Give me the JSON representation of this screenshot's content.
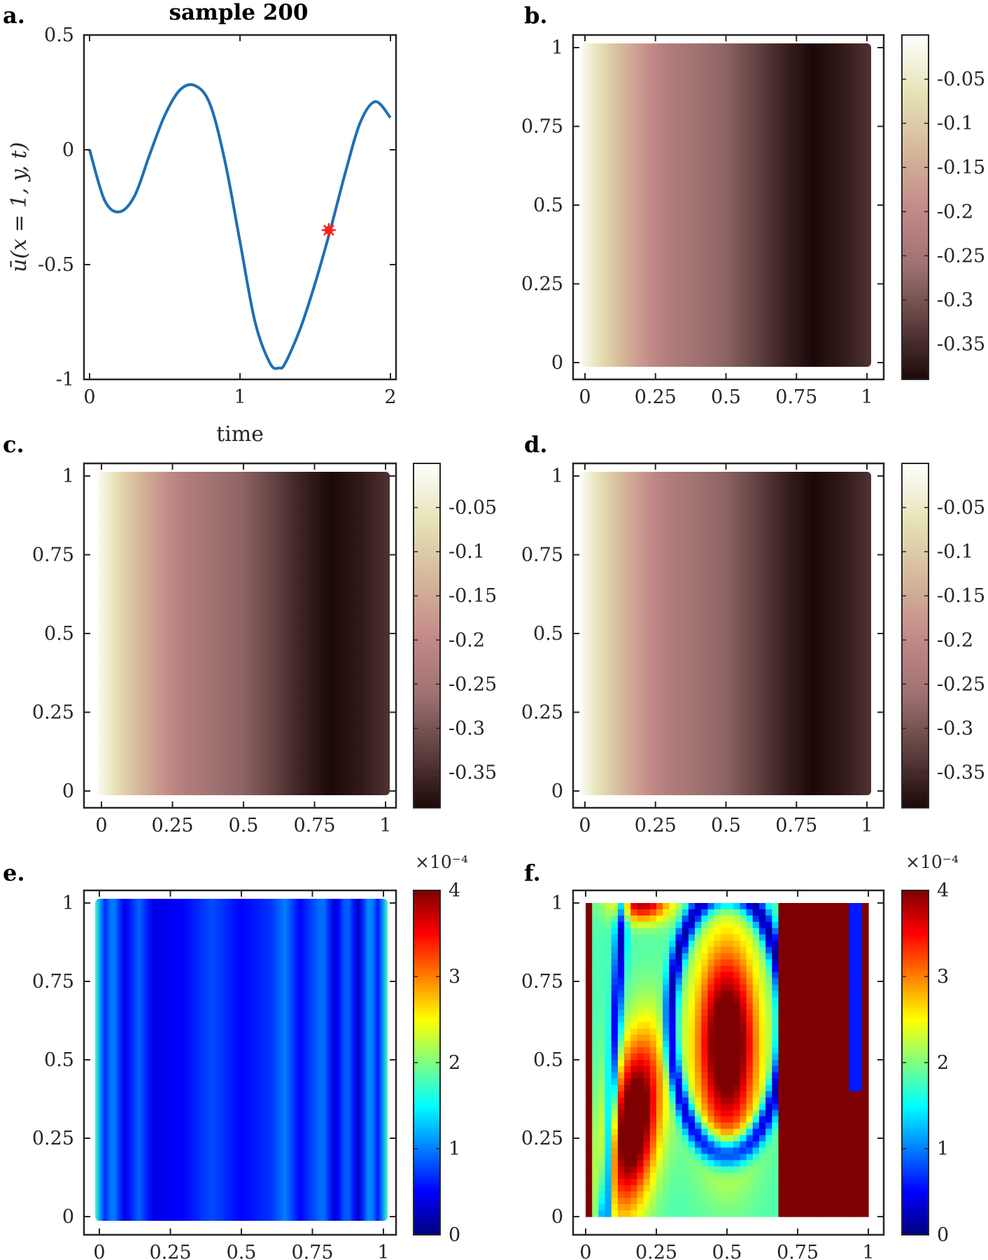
{
  "colors": {
    "line": "#1f6fb4",
    "marker": "#ff2020",
    "axis": "#262626",
    "pink_cmap": [
      "#1c0808",
      "#604040",
      "#a07272",
      "#c48a88",
      "#d5b89a",
      "#e6e3b6",
      "#ffffff"
    ],
    "jet_cmap": [
      "#00007f",
      "#0000ff",
      "#007fff",
      "#00ffff",
      "#7fff7f",
      "#ffff00",
      "#ff7f00",
      "#ff0000",
      "#7f0000"
    ]
  },
  "chart_data": [
    {
      "id": "a",
      "panel_label": "a.",
      "type": "line",
      "title": "sample 200",
      "xlabel": "time",
      "ylabel": "ū(x = 1, y, t)",
      "xlim": [
        0,
        2
      ],
      "ylim": [
        -1,
        0.5
      ],
      "xticks": [
        "0",
        "1",
        "2"
      ],
      "yticks": [
        "-1",
        "-0.5",
        "0",
        "0.5"
      ],
      "ytick_values": [
        -1,
        -0.5,
        0,
        0.5
      ],
      "series": [
        {
          "x": [
            0,
            0.1,
            0.2,
            0.3,
            0.4,
            0.5,
            0.6,
            0.7,
            0.8,
            0.9,
            1.0,
            1.1,
            1.2,
            1.26,
            1.3,
            1.4,
            1.5,
            1.6,
            1.7,
            1.8,
            1.9,
            2.0
          ],
          "y": [
            0,
            -0.22,
            -0.27,
            -0.2,
            -0.02,
            0.15,
            0.26,
            0.28,
            0.2,
            -0.05,
            -0.4,
            -0.75,
            -0.93,
            -0.95,
            -0.93,
            -0.78,
            -0.58,
            -0.35,
            -0.1,
            0.12,
            0.21,
            0.14
          ]
        }
      ],
      "annotations": [
        {
          "type": "marker",
          "x": 1.59,
          "y": -0.35
        }
      ]
    },
    {
      "id": "b",
      "panel_label": "b.",
      "type": "heatmap",
      "colormap": "pink",
      "xlim": [
        0,
        1
      ],
      "ylim": [
        0,
        1
      ],
      "xticks": [
        "0",
        "0.25",
        "0.5",
        "0.75",
        "1"
      ],
      "yticks": [
        "0",
        "0.25",
        "0.5",
        "0.75",
        "1"
      ],
      "clim": [
        -0.39,
        0
      ],
      "colorbar_ticks": [
        "-0.35",
        "-0.3",
        "-0.25",
        "-0.2",
        "-0.15",
        "-0.1",
        "-0.05"
      ],
      "colorbar_tick_values": [
        -0.35,
        -0.3,
        -0.25,
        -0.2,
        -0.15,
        -0.1,
        -0.05
      ],
      "profile_x": [
        0,
        0.1,
        0.2,
        0.3,
        0.4,
        0.5,
        0.6,
        0.7,
        0.8,
        0.9,
        1.0
      ],
      "profile_value": [
        -0.01,
        -0.1,
        -0.17,
        -0.23,
        -0.26,
        -0.28,
        -0.32,
        -0.36,
        -0.39,
        -0.37,
        -0.34
      ]
    },
    {
      "id": "c",
      "panel_label": "c.",
      "type": "heatmap",
      "colormap": "pink",
      "xlim": [
        0,
        1
      ],
      "ylim": [
        0,
        1
      ],
      "xticks": [
        "0",
        "0.25",
        "0.5",
        "0.75",
        "1"
      ],
      "yticks": [
        "0",
        "0.25",
        "0.5",
        "0.75",
        "1"
      ],
      "clim": [
        -0.39,
        0
      ],
      "colorbar_ticks": [
        "-0.35",
        "-0.3",
        "-0.25",
        "-0.2",
        "-0.15",
        "-0.1",
        "-0.05"
      ],
      "colorbar_tick_values": [
        -0.35,
        -0.3,
        -0.25,
        -0.2,
        -0.15,
        -0.1,
        -0.05
      ],
      "profile_x": [
        0,
        0.1,
        0.2,
        0.3,
        0.4,
        0.5,
        0.6,
        0.7,
        0.8,
        0.9,
        1.0
      ],
      "profile_value": [
        -0.01,
        -0.1,
        -0.17,
        -0.23,
        -0.26,
        -0.28,
        -0.32,
        -0.36,
        -0.39,
        -0.37,
        -0.34
      ]
    },
    {
      "id": "d",
      "panel_label": "d.",
      "type": "heatmap",
      "colormap": "pink",
      "xlim": [
        0,
        1
      ],
      "ylim": [
        0,
        1
      ],
      "xticks": [
        "0",
        "0.25",
        "0.5",
        "0.75",
        "1"
      ],
      "yticks": [
        "0",
        "0.25",
        "0.5",
        "0.75",
        "1"
      ],
      "clim": [
        -0.39,
        0
      ],
      "colorbar_ticks": [
        "-0.35",
        "-0.3",
        "-0.25",
        "-0.2",
        "-0.15",
        "-0.1",
        "-0.05"
      ],
      "colorbar_tick_values": [
        -0.35,
        -0.3,
        -0.25,
        -0.2,
        -0.15,
        -0.1,
        -0.05
      ],
      "profile_x": [
        0,
        0.1,
        0.2,
        0.3,
        0.4,
        0.5,
        0.6,
        0.7,
        0.8,
        0.9,
        1.0
      ],
      "profile_value": [
        -0.01,
        -0.1,
        -0.17,
        -0.23,
        -0.26,
        -0.28,
        -0.32,
        -0.36,
        -0.39,
        -0.37,
        -0.34
      ]
    },
    {
      "id": "e",
      "panel_label": "e.",
      "type": "heatmap",
      "colormap": "jet",
      "xlim": [
        0,
        1
      ],
      "ylim": [
        0,
        1
      ],
      "xticks": [
        "0",
        "0.25",
        "0.5",
        "0.75",
        "1"
      ],
      "yticks": [
        "0",
        "0.25",
        "0.5",
        "0.75",
        "1"
      ],
      "clim": [
        0,
        4
      ],
      "colorbar_ticks": [
        "0",
        "1",
        "2",
        "3",
        "4"
      ],
      "colorbar_tick_values": [
        0,
        1,
        2,
        3,
        4
      ],
      "colorbar_exponent": "×10⁻⁴",
      "profile_x": [
        0,
        0.03,
        0.06,
        0.1,
        0.15,
        0.2,
        0.3,
        0.4,
        0.5,
        0.6,
        0.65,
        0.7,
        0.78,
        0.82,
        0.86,
        0.9,
        0.94,
        0.97,
        1.0
      ],
      "profile_value": [
        1.8,
        0.6,
        1.1,
        0.4,
        0.9,
        0.4,
        0.5,
        0.8,
        0.5,
        0.7,
        1.0,
        0.5,
        1.0,
        0.3,
        1.0,
        0.3,
        1.2,
        0.5,
        1.8
      ]
    },
    {
      "id": "f",
      "panel_label": "f.",
      "type": "heatmap",
      "colormap": "jet",
      "xlim": [
        0,
        1
      ],
      "ylim": [
        0,
        1
      ],
      "xticks": [
        "0",
        "0.25",
        "0.5",
        "0.75",
        "1"
      ],
      "yticks": [
        "0",
        "0.25",
        "0.5",
        "0.75",
        "1"
      ],
      "clim": [
        0,
        4
      ],
      "colorbar_ticks": [
        "0",
        "1",
        "2",
        "3",
        "4"
      ],
      "colorbar_tick_values": [
        0,
        1,
        2,
        3,
        4
      ],
      "colorbar_exponent": "×10⁻⁴"
    }
  ]
}
